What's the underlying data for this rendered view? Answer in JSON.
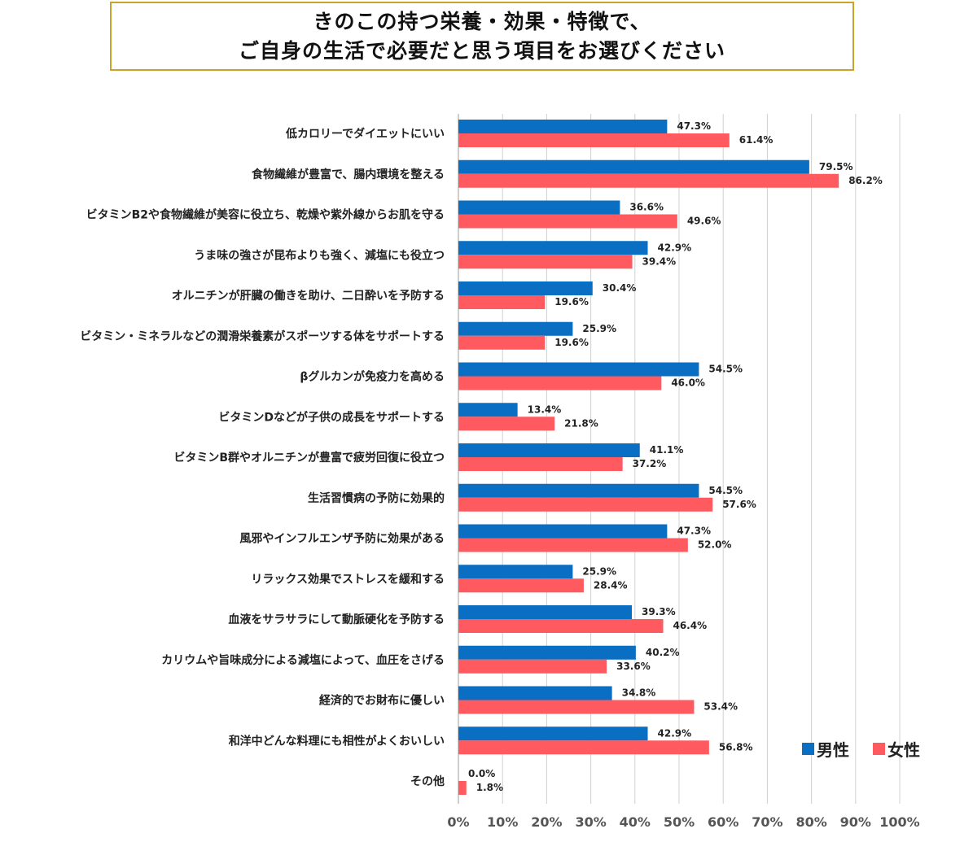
{
  "title": {
    "line1": "きのこの持つ栄養・効果・特徴で、",
    "line2": "ご自身の生活で必要だと思う項目をお選びください"
  },
  "colors": {
    "male": "#0a6fc2",
    "female": "#ff5a5f",
    "grid": "#d0d0d0"
  },
  "chart_data": {
    "type": "bar",
    "orientation": "horizontal",
    "categories": [
      "低カロリーでダイエットにいい",
      "食物繊維が豊富で、腸内環境を整える",
      "ビタミンB2や食物繊維が美容に役立ち、乾燥や紫外線からお肌を守る",
      "うま味の強さが昆布よりも強く、減塩にも役立つ",
      "オルニチンが肝臓の働きを助け、二日酔いを予防する",
      "ビタミン・ミネラルなどの潤滑栄養素がスポーツする体をサポートする",
      "βグルカンが免疫力を高める",
      "ビタミンDなどが子供の成長をサポートする",
      "ビタミンB群やオルニチンが豊富で疲労回復に役立つ",
      "生活習慣病の予防に効果的",
      "風邪やインフルエンザ予防に効果がある",
      "リラックス効果でストレスを緩和する",
      "血液をサラサラにして動脈硬化を予防する",
      "カリウムや旨味成分による減塩によって、血圧をさげる",
      "経済的でお財布に優しい",
      "和洋中どんな料理にも相性がよくおいしい",
      "その他"
    ],
    "series": [
      {
        "name": "男性",
        "values": [
          47.3,
          79.5,
          36.6,
          42.9,
          30.4,
          25.9,
          54.5,
          13.4,
          41.1,
          54.5,
          47.3,
          25.9,
          39.3,
          40.2,
          34.8,
          42.9,
          0.0
        ]
      },
      {
        "name": "女性",
        "values": [
          61.4,
          86.2,
          49.6,
          39.4,
          19.6,
          19.6,
          46.0,
          21.8,
          37.2,
          57.6,
          52.0,
          28.4,
          46.4,
          33.6,
          53.4,
          56.8,
          1.8
        ]
      }
    ],
    "value_labels": {
      "男性": [
        "47.3%",
        "79.5%",
        "36.6%",
        "42.9%",
        "30.4%",
        "25.9%",
        "54.5%",
        "13.4%",
        "41.1%",
        "54.5%",
        "47.3%",
        "25.9%",
        "39.3%",
        "40.2%",
        "34.8%",
        "42.9%",
        "0.0%"
      ],
      "女性": [
        "61.4%",
        "86.2%",
        "49.6%",
        "39.4%",
        "19.6%",
        "19.6%",
        "46.0%",
        "21.8%",
        "37.2%",
        "57.6%",
        "52.0%",
        "28.4%",
        "46.4%",
        "33.6%",
        "53.4%",
        "56.8%",
        "1.8%"
      ]
    },
    "x_ticks": [
      "0%",
      "10%",
      "20%",
      "30%",
      "40%",
      "50%",
      "60%",
      "70%",
      "80%",
      "90%",
      "100%"
    ],
    "xlim": [
      0,
      100
    ],
    "grid": true,
    "legend": {
      "position": "bottom-right",
      "entries": [
        "男性",
        "女性"
      ]
    }
  }
}
